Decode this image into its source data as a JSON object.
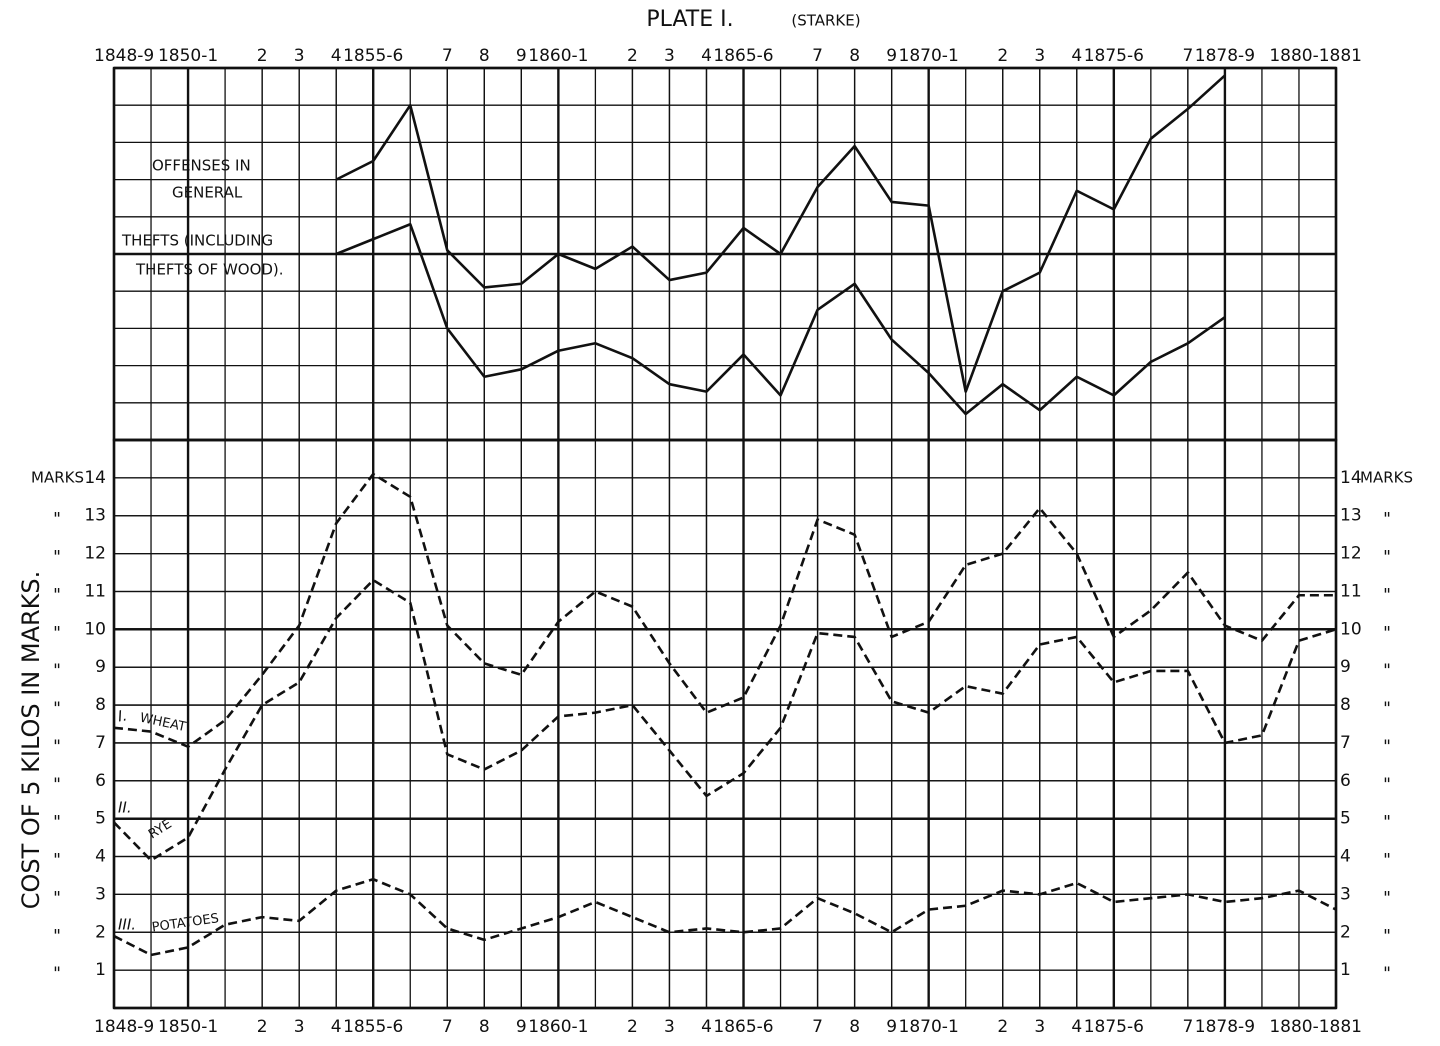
{
  "chart_data": [
    {
      "type": "line",
      "title": "PLATE I.",
      "subtitle": "(STARKE)",
      "tick_side": "top",
      "line_style": "solid",
      "color": "#111111",
      "xlim": [
        0,
        33
      ],
      "ylim": [
        0,
        10
      ],
      "xticks": [
        {
          "value": 0,
          "label": "1848-9"
        },
        {
          "value": 2,
          "label": "1850-1"
        },
        {
          "value": 4,
          "label": "2"
        },
        {
          "value": 5,
          "label": "3"
        },
        {
          "value": 6,
          "label": "4"
        },
        {
          "value": 7,
          "label": "1855-6"
        },
        {
          "value": 9,
          "label": "7"
        },
        {
          "value": 10,
          "label": "8"
        },
        {
          "value": 11,
          "label": "9"
        },
        {
          "value": 12,
          "label": "1860-1"
        },
        {
          "value": 14,
          "label": "2"
        },
        {
          "value": 15,
          "label": "3"
        },
        {
          "value": 16,
          "label": "4"
        },
        {
          "value": 17,
          "label": "1865-6"
        },
        {
          "value": 19,
          "label": "7"
        },
        {
          "value": 20,
          "label": "8"
        },
        {
          "value": 21,
          "label": "9"
        },
        {
          "value": 22,
          "label": "1870-1"
        },
        {
          "value": 24,
          "label": "2"
        },
        {
          "value": 25,
          "label": "3"
        },
        {
          "value": 26,
          "label": "4"
        },
        {
          "value": 27,
          "label": "1875-6"
        },
        {
          "value": 29,
          "label": "7"
        },
        {
          "value": 30,
          "label": "1878-9"
        },
        {
          "value": 33,
          "label": "1880-1881"
        }
      ],
      "series": [
        {
          "name": [
            "OFFENSES IN",
            "GENERAL"
          ],
          "values": [
            null,
            null,
            null,
            null,
            null,
            null,
            7.0,
            7.5,
            9.0,
            5.1,
            4.1,
            4.2,
            5.0,
            4.6,
            5.2,
            4.3,
            4.5,
            5.7,
            5.0,
            6.8,
            7.9,
            6.4,
            6.3,
            1.3,
            4.0,
            4.5,
            6.7,
            6.2,
            8.1,
            8.9,
            9.8,
            null,
            null,
            null
          ]
        },
        {
          "name": [
            "THEFTS (INCLUDING",
            "THEFTS OF WOOD)."
          ],
          "values": [
            null,
            null,
            null,
            null,
            null,
            null,
            5.0,
            5.4,
            5.8,
            3.0,
            1.7,
            1.9,
            2.4,
            2.6,
            2.2,
            1.5,
            1.3,
            2.3,
            1.2,
            3.5,
            4.2,
            2.7,
            1.8,
            0.7,
            1.5,
            0.8,
            1.7,
            1.2,
            2.1,
            2.6,
            3.3,
            null,
            null,
            null
          ]
        }
      ]
    },
    {
      "type": "line",
      "ylabel": "COST OF 5 KILOS IN MARKS.",
      "y_unit": "MARKS",
      "ditto_mark": "\"",
      "tick_side": "bottom",
      "line_style": "dashed",
      "color": "#111111",
      "xlim": [
        0,
        33
      ],
      "ylim": [
        0,
        15
      ],
      "yticks": [
        1,
        2,
        3,
        4,
        5,
        6,
        7,
        8,
        9,
        10,
        11,
        12,
        13,
        14
      ],
      "xticks": [
        {
          "value": 0,
          "label": "1848-9"
        },
        {
          "value": 2,
          "label": "1850-1"
        },
        {
          "value": 4,
          "label": "2"
        },
        {
          "value": 5,
          "label": "3"
        },
        {
          "value": 6,
          "label": "4"
        },
        {
          "value": 7,
          "label": "1855-6"
        },
        {
          "value": 9,
          "label": "7"
        },
        {
          "value": 10,
          "label": "8"
        },
        {
          "value": 11,
          "label": "9"
        },
        {
          "value": 12,
          "label": "1860-1"
        },
        {
          "value": 14,
          "label": "2"
        },
        {
          "value": 15,
          "label": "3"
        },
        {
          "value": 16,
          "label": "4"
        },
        {
          "value": 17,
          "label": "1865-6"
        },
        {
          "value": 19,
          "label": "7"
        },
        {
          "value": 20,
          "label": "8"
        },
        {
          "value": 21,
          "label": "9"
        },
        {
          "value": 22,
          "label": "1870-1"
        },
        {
          "value": 24,
          "label": "2"
        },
        {
          "value": 25,
          "label": "3"
        },
        {
          "value": 26,
          "label": "4"
        },
        {
          "value": 27,
          "label": "1875-6"
        },
        {
          "value": 29,
          "label": "7"
        },
        {
          "value": 30,
          "label": "1878-9"
        },
        {
          "value": 33,
          "label": "1880-1881"
        }
      ],
      "series": [
        {
          "numeral": "I.",
          "name": "WHEAT",
          "values": [
            7.4,
            7.3,
            6.9,
            7.6,
            8.8,
            10.1,
            12.8,
            14.1,
            13.5,
            10.1,
            9.1,
            8.8,
            10.2,
            11.0,
            10.6,
            9.1,
            7.8,
            8.2,
            10.1,
            12.9,
            12.5,
            9.8,
            10.2,
            11.7,
            12.0,
            13.2,
            12.0,
            9.8,
            10.5,
            11.5,
            10.1,
            9.7,
            10.9,
            10.9
          ]
        },
        {
          "numeral": "II.",
          "name": "RYE",
          "values": [
            4.9,
            3.9,
            4.5,
            6.3,
            8.0,
            8.6,
            10.3,
            11.3,
            10.7,
            6.7,
            6.3,
            6.8,
            7.7,
            7.8,
            8.0,
            6.8,
            5.6,
            6.2,
            7.4,
            9.9,
            9.8,
            8.1,
            7.8,
            8.5,
            8.3,
            9.6,
            9.8,
            8.6,
            8.9,
            8.9,
            7.0,
            7.2,
            9.7,
            10.0
          ]
        },
        {
          "numeral": "III.",
          "name": "POTATOES",
          "values": [
            1.9,
            1.4,
            1.6,
            2.2,
            2.4,
            2.3,
            3.1,
            3.4,
            3.0,
            2.1,
            1.8,
            2.1,
            2.4,
            2.8,
            2.4,
            2.0,
            2.1,
            2.0,
            2.1,
            2.9,
            2.5,
            2.0,
            2.6,
            2.7,
            3.1,
            3.0,
            3.3,
            2.8,
            2.9,
            3.0,
            2.8,
            2.9,
            3.1,
            2.6
          ]
        }
      ]
    }
  ]
}
